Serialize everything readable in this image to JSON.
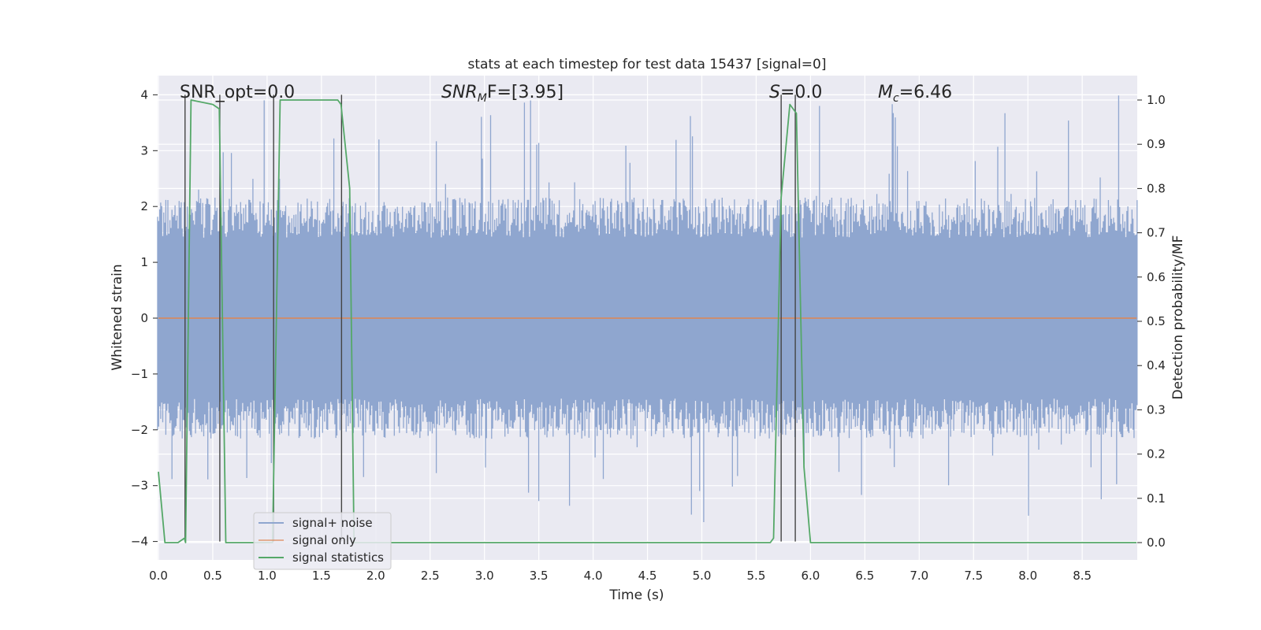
{
  "chart_data": {
    "type": "line",
    "title": "stats at each timestep for test data 15437 [signal=0]",
    "xlabel": "Time (s)",
    "ylabel": "Whitened strain",
    "y2label": "Detection probability/MF",
    "xlim": [
      0,
      9
    ],
    "ylim": [
      -4.4,
      4.3
    ],
    "y2lim": [
      -0.05,
      1.05
    ],
    "xticks": [
      "0.0",
      "0.5",
      "1.0",
      "1.5",
      "2.0",
      "2.5",
      "3.0",
      "3.5",
      "4.0",
      "4.5",
      "5.0",
      "5.5",
      "6.0",
      "6.5",
      "7.0",
      "7.5",
      "8.0",
      "8.5"
    ],
    "yticks": [
      "4",
      "3",
      "2",
      "1",
      "0",
      "−1",
      "−2",
      "−3",
      "−4"
    ],
    "y2ticks": [
      "1.0",
      "0.9",
      "0.8",
      "0.7",
      "0.6",
      "0.5",
      "0.4",
      "0.3",
      "0.2",
      "0.1",
      "0.0"
    ],
    "grid": true,
    "legend_position": "lower-left",
    "annotations": {
      "snr_opt": "SNR_opt=0.0",
      "snr_mf_main": "SNR",
      "snr_mf_sub": "M",
      "snr_mf_rest": "F=[3.95]",
      "s_main": "S",
      "s_rest": "=0.0",
      "mc_main": "M",
      "mc_sub": "c",
      "mc_rest": "=6.46"
    },
    "series": [
      {
        "name": "signal+ noise",
        "color": "#8fa6cf",
        "style": "noise band, amplitude roughly within ±2 whitened strain",
        "envelope": {
          "typical_upper": 2.0,
          "typical_lower": -2.0,
          "max": 4.0,
          "min": -3.7
        }
      },
      {
        "name": "signal only",
        "color": "#dd8452",
        "x": [
          0,
          9
        ],
        "y": [
          0,
          0
        ]
      },
      {
        "name": "signal statistics",
        "color": "#55a868",
        "axis": "right",
        "x": [
          0.0,
          0.06,
          0.18,
          0.24,
          0.25,
          0.3,
          0.5,
          0.56,
          0.62,
          1.05,
          1.12,
          1.65,
          1.68,
          1.76,
          1.8,
          5.63,
          5.66,
          5.73,
          5.81,
          5.87,
          5.94,
          6.0,
          9.0
        ],
        "y": [
          0.16,
          0.0,
          0.0,
          0.01,
          0.0,
          1.0,
          0.99,
          0.98,
          0.0,
          0.0,
          1.0,
          1.0,
          0.99,
          0.8,
          0.0,
          0.0,
          0.01,
          0.78,
          0.99,
          0.97,
          0.17,
          0.0,
          0.0
        ]
      }
    ],
    "vlines": [
      {
        "x": 0.245,
        "y_top": 4.0,
        "y_bottom": -4.0
      },
      {
        "x": 0.565,
        "y_top": 4.0,
        "y_bottom": -4.0
      },
      {
        "x": 1.06,
        "y_top": 4.0,
        "y_bottom": -4.0
      },
      {
        "x": 1.685,
        "y_top": 4.0,
        "y_bottom": -4.0
      },
      {
        "x": 5.73,
        "y_top": 4.0,
        "y_bottom": -4.0
      },
      {
        "x": 5.86,
        "y_top": 4.0,
        "y_bottom": -4.0
      }
    ],
    "colors": {
      "plot_background": "#eaeaf2",
      "grid": "#ffffff",
      "vline": "#444444"
    }
  }
}
